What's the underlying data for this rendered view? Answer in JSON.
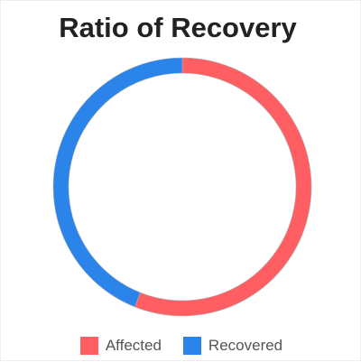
{
  "chart_data": {
    "type": "pie",
    "title": "Ratio of Recovery",
    "categories": [
      "Affected",
      "Recovered"
    ],
    "values": [
      56,
      44
    ],
    "colors": [
      "#ff5f63",
      "#2a84ea"
    ],
    "legend_position": "bottom"
  }
}
